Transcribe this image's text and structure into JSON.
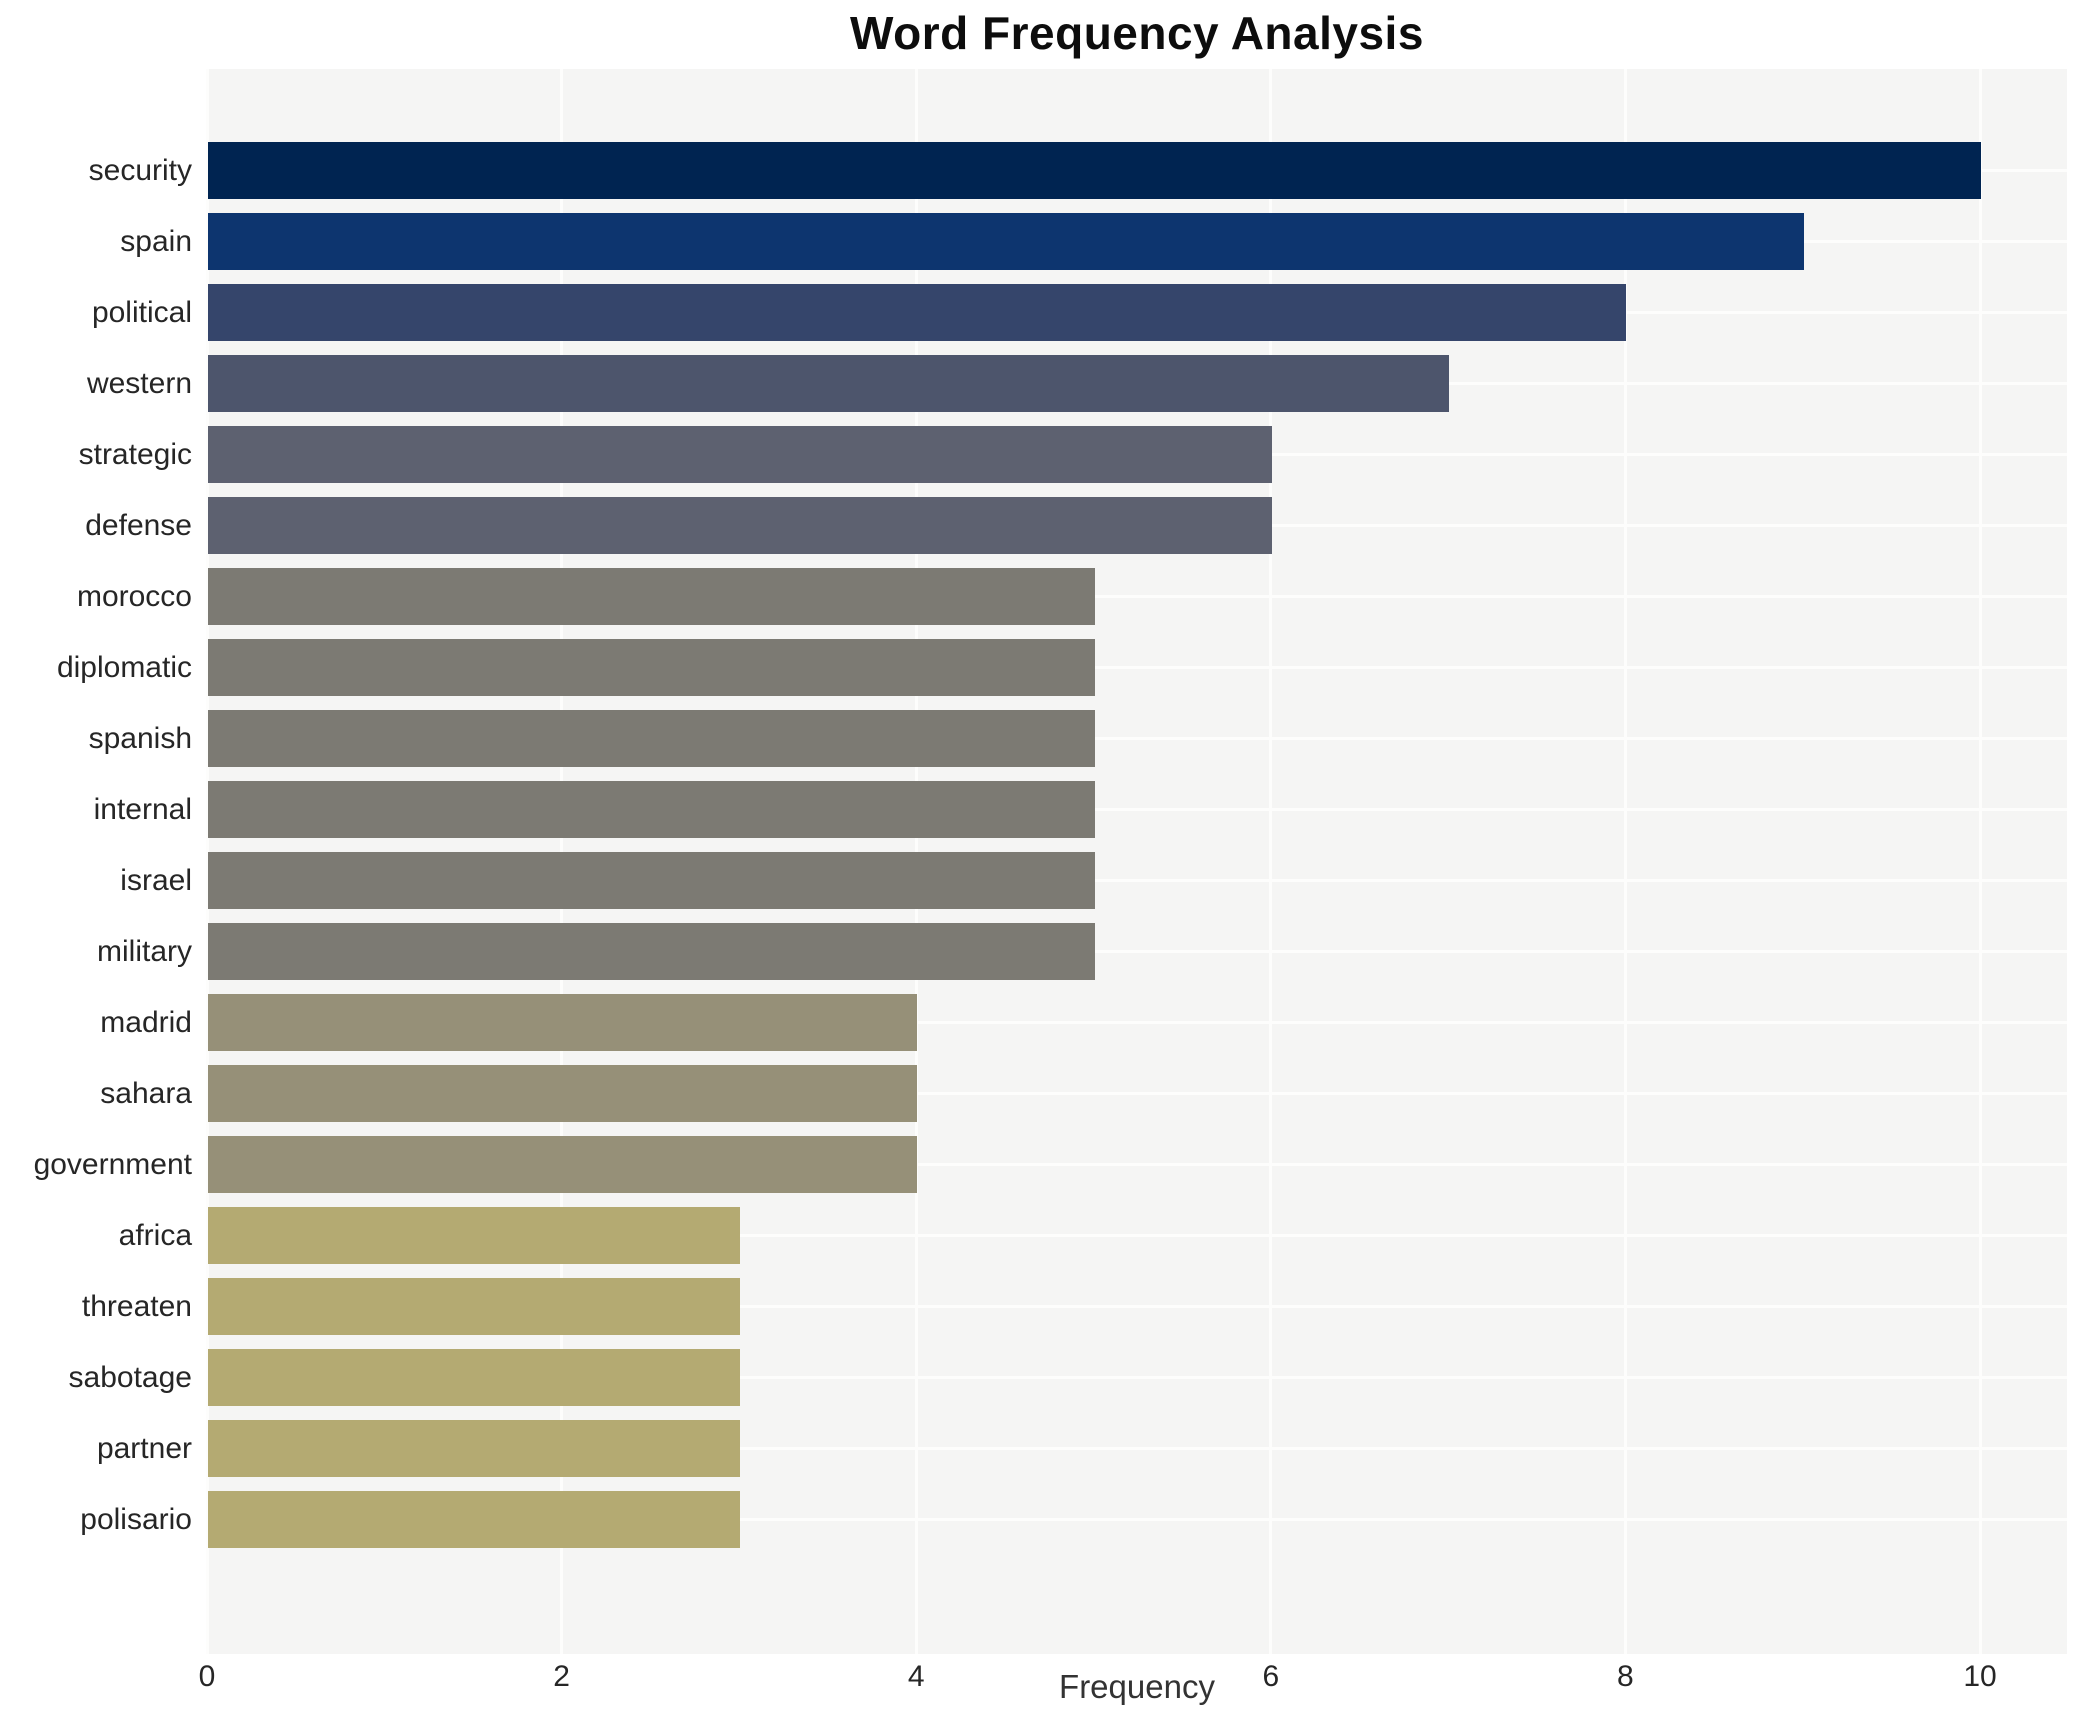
{
  "chart": {
    "title": "Word Frequency Analysis",
    "xlabel": "Frequency"
  },
  "chart_data": {
    "type": "bar",
    "orientation": "horizontal",
    "title": "Word Frequency Analysis",
    "xlabel": "Frequency",
    "ylabel": "",
    "xlim": [
      0,
      10.5
    ],
    "x_ticks": [
      0,
      2,
      4,
      6,
      8,
      10
    ],
    "x_tick_labels": [
      "0",
      "2",
      "4",
      "6",
      "8",
      "10"
    ],
    "grid": true,
    "legend": false,
    "plot_background": "#f5f5f4",
    "gridline_color": "#fdfdfc",
    "categories": [
      "security",
      "spain",
      "political",
      "western",
      "strategic",
      "defense",
      "morocco",
      "diplomatic",
      "spanish",
      "internal",
      "israel",
      "military",
      "madrid",
      "sahara",
      "government",
      "africa",
      "threaten",
      "sabotage",
      "partner",
      "polisario"
    ],
    "values": [
      10,
      9,
      8,
      7,
      6,
      6,
      5,
      5,
      5,
      5,
      5,
      5,
      4,
      4,
      4,
      3,
      3,
      3,
      3,
      3
    ],
    "bar_colors": [
      "#002451",
      "#0d356f",
      "#35456b",
      "#4d556c",
      "#5d6170",
      "#5d6170",
      "#7c7a73",
      "#7c7a73",
      "#7c7a73",
      "#7c7a73",
      "#7c7a73",
      "#7c7a73",
      "#969078",
      "#969078",
      "#969078",
      "#b4aa72",
      "#b4aa72",
      "#b4aa72",
      "#b4aa72",
      "#b4aa72"
    ]
  }
}
